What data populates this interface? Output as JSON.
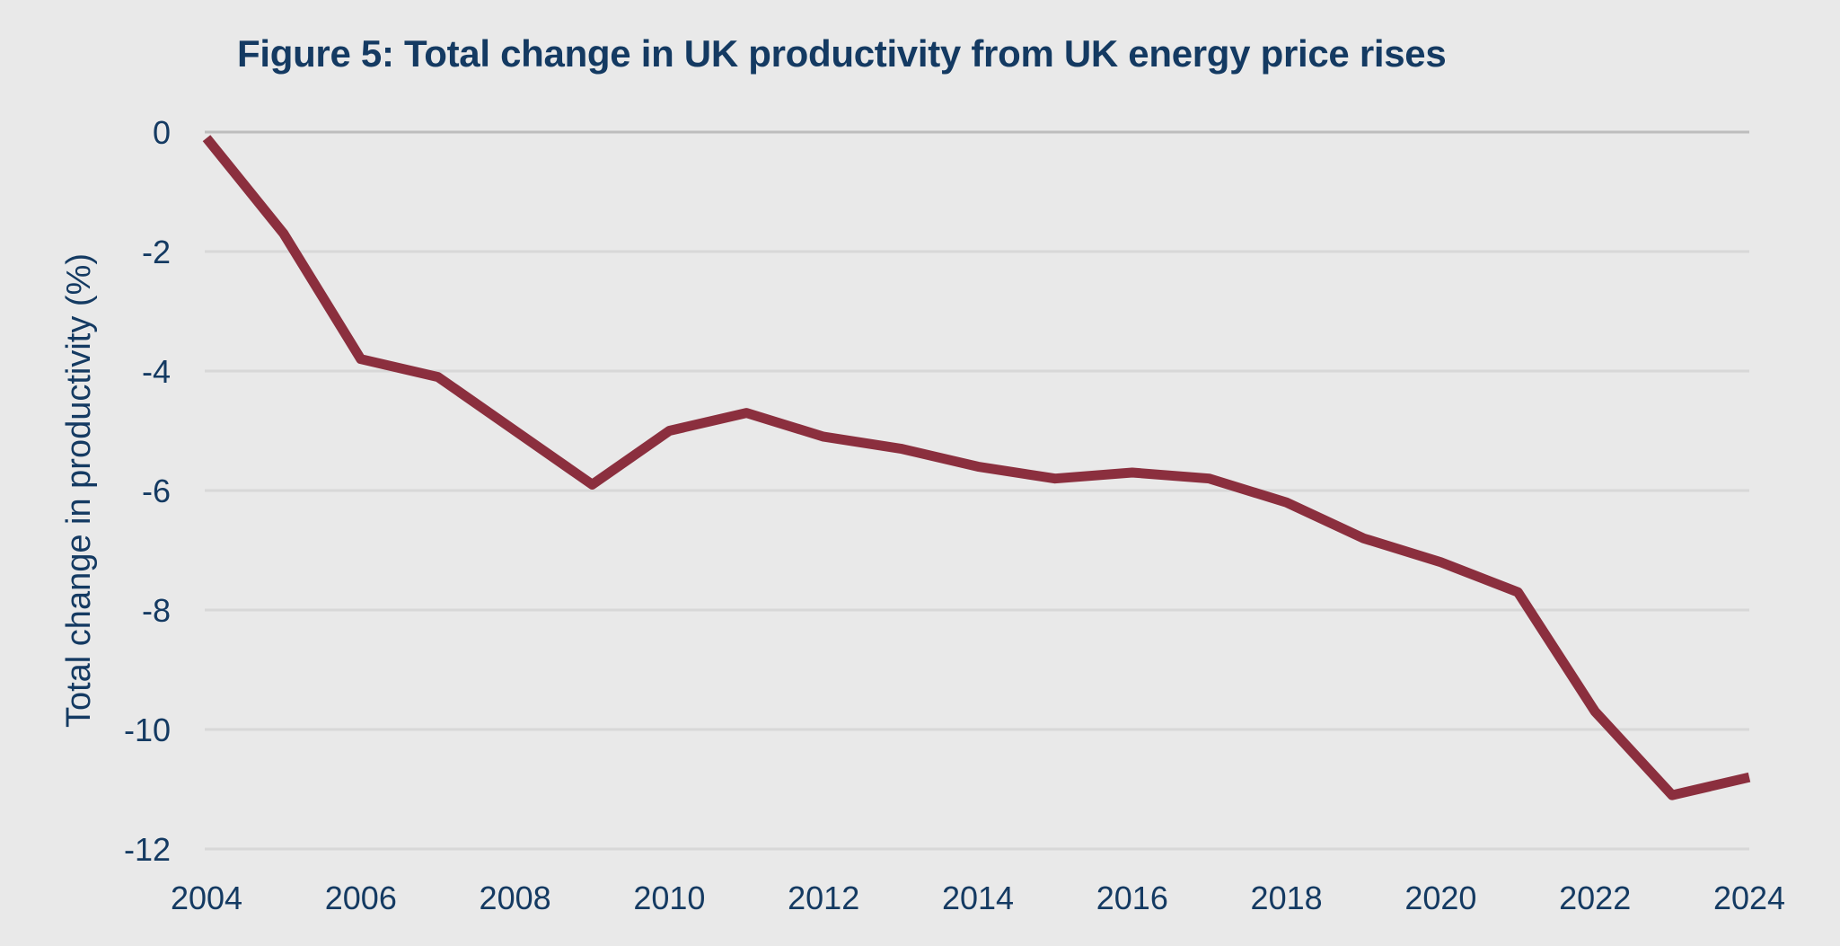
{
  "chart_data": {
    "type": "line",
    "title": "Figure 5: Total change in UK productivity from UK energy price rises",
    "xlabel": "",
    "ylabel": "Total change in productivity (%)",
    "xlim": [
      2004,
      2024
    ],
    "ylim": [
      -12,
      0
    ],
    "x_ticks": [
      2004,
      2006,
      2008,
      2010,
      2012,
      2014,
      2016,
      2018,
      2020,
      2022,
      2024
    ],
    "y_ticks": [
      0,
      -2,
      -4,
      -6,
      -8,
      -10,
      -12
    ],
    "grid": "horizontal",
    "legend": "none",
    "series": [
      {
        "name": "Total change in productivity",
        "color": "#8b2f3e",
        "x": [
          2004,
          2005,
          2006,
          2007,
          2008,
          2009,
          2010,
          2011,
          2012,
          2013,
          2014,
          2015,
          2016,
          2017,
          2018,
          2019,
          2020,
          2021,
          2022,
          2023,
          2024
        ],
        "values": [
          -0.1,
          -1.7,
          -3.8,
          -4.1,
          -5.0,
          -5.9,
          -5.0,
          -4.7,
          -5.1,
          -5.3,
          -5.6,
          -5.8,
          -5.7,
          -5.8,
          -6.2,
          -6.8,
          -7.2,
          -7.7,
          -9.7,
          -11.1,
          -10.8
        ]
      }
    ]
  },
  "colors": {
    "background": "#e9e9e9",
    "text": "#143a62",
    "grid": "#d8d8d8",
    "zero_line": "#bdbdbd",
    "line": "#8b2f3e"
  }
}
